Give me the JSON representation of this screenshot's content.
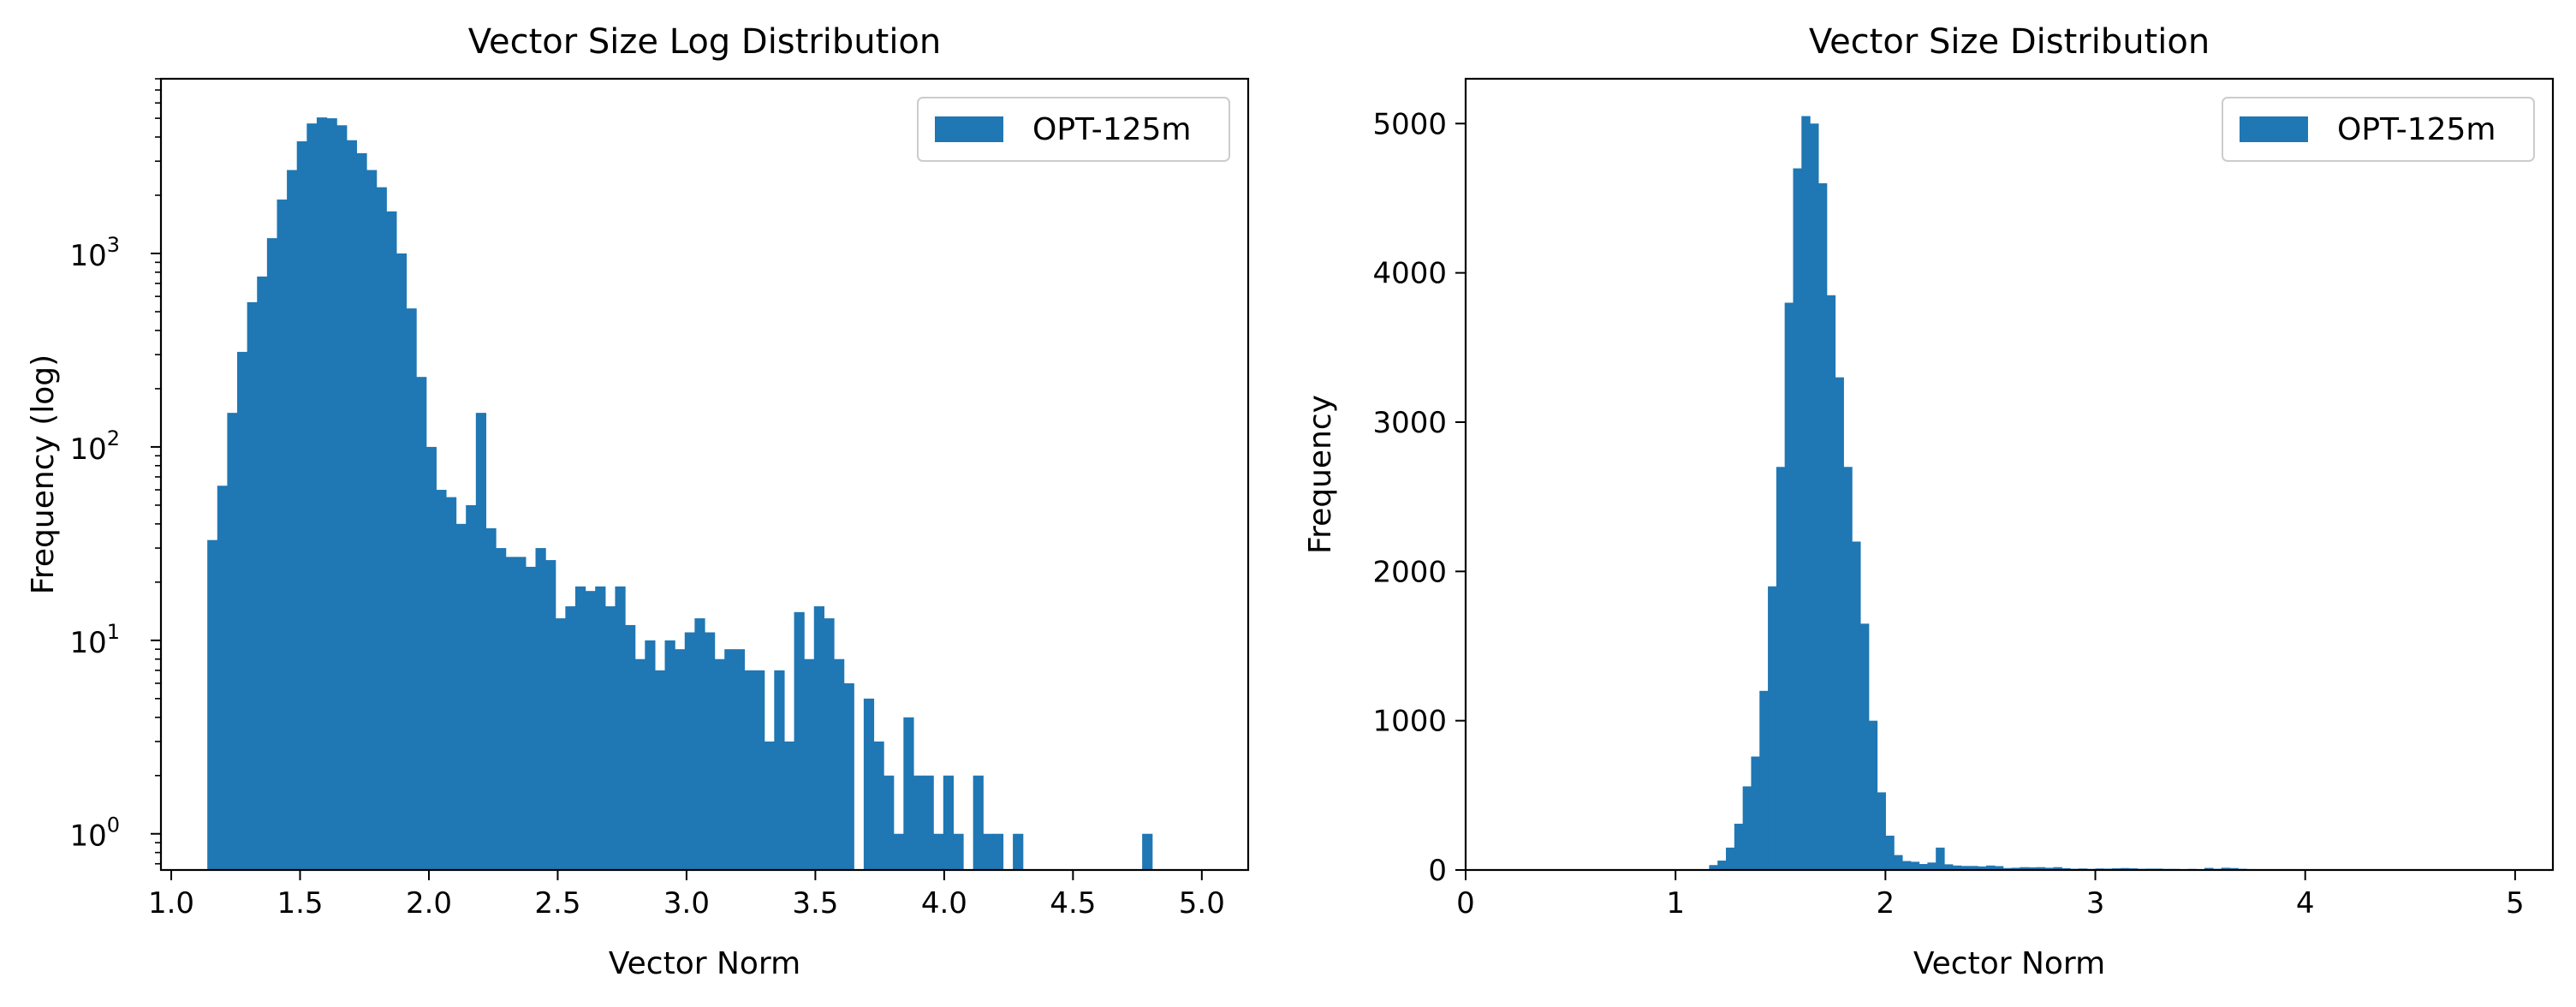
{
  "chart_data": [
    {
      "type": "bar",
      "subtype": "histogram",
      "title": "Vector Size Log Distribution",
      "xlabel": "Vector Norm",
      "ylabel": "Frequency (log)",
      "yscale": "log",
      "xlim": [
        0.96,
        5.18
      ],
      "ylim": [
        0.65,
        8000
      ],
      "xticks": [
        "1.0",
        "1.5",
        "2.0",
        "2.5",
        "3.0",
        "3.5",
        "4.0",
        "4.5",
        "5.0"
      ],
      "yticks": [
        {
          "value": 1,
          "base": "10",
          "exp": "0"
        },
        {
          "value": 10,
          "base": "10",
          "exp": "1"
        },
        {
          "value": 100,
          "base": "10",
          "exp": "2"
        },
        {
          "value": 1000,
          "base": "10",
          "exp": "3"
        }
      ],
      "legend": {
        "label": "OPT-125m",
        "position": "top-right"
      },
      "color": "#1f77b4",
      "series": [
        {
          "name": "OPT-125m",
          "bin_start": 1.14,
          "bin_width": 0.0386,
          "values": [
            33,
            63,
            150,
            310,
            560,
            760,
            1200,
            1900,
            2700,
            3800,
            4700,
            5050,
            5000,
            4600,
            3850,
            3300,
            2700,
            2200,
            1650,
            1000,
            520,
            230,
            100,
            60,
            55,
            40,
            50,
            150,
            38,
            30,
            27,
            27,
            24,
            30,
            26,
            13,
            15,
            19,
            18,
            19,
            15,
            19,
            12,
            8,
            10,
            7,
            10,
            9,
            11,
            13,
            11,
            8,
            9,
            9,
            7,
            7,
            3,
            7,
            3,
            14,
            8,
            15,
            13,
            8,
            6,
            0,
            5,
            3,
            2,
            1,
            4,
            2,
            2,
            1,
            2,
            1,
            0,
            2,
            1,
            1,
            0,
            1,
            0,
            0,
            0,
            0,
            0,
            0,
            0,
            0,
            0,
            0,
            0,
            0,
            1,
            0,
            0,
            0,
            0,
            0
          ]
        }
      ]
    },
    {
      "type": "bar",
      "subtype": "histogram",
      "title": "Vector Size Distribution",
      "xlabel": "Vector Norm",
      "ylabel": "Frequency",
      "yscale": "linear",
      "xlim": [
        0,
        5.18
      ],
      "ylim": [
        0,
        5300
      ],
      "xticks": [
        "0",
        "1",
        "2",
        "3",
        "4",
        "5"
      ],
      "yticks": [
        "0",
        "1000",
        "2000",
        "3000",
        "4000",
        "5000"
      ],
      "legend": {
        "label": "OPT-125m",
        "position": "top-right"
      },
      "color": "#1f77b4",
      "series": [
        {
          "name": "OPT-125m",
          "bin_start": 0.0,
          "bin_width": 0.04,
          "values": [
            0,
            0,
            0,
            0,
            0,
            0,
            0,
            0,
            0,
            0,
            0,
            0,
            0,
            0,
            0,
            0,
            0,
            0,
            0,
            0,
            0,
            0,
            0,
            0,
            0,
            0,
            0,
            0,
            0,
            33,
            63,
            150,
            310,
            560,
            760,
            1200,
            1900,
            2700,
            3800,
            4700,
            5050,
            5000,
            4600,
            3850,
            3300,
            2700,
            2200,
            1650,
            1000,
            520,
            230,
            100,
            60,
            55,
            40,
            50,
            150,
            38,
            30,
            27,
            27,
            24,
            30,
            26,
            13,
            15,
            19,
            18,
            19,
            15,
            19,
            12,
            8,
            10,
            7,
            10,
            9,
            11,
            13,
            11,
            8,
            9,
            9,
            7,
            7,
            3,
            7,
            3,
            14,
            8,
            15,
            13,
            8,
            6,
            0,
            5,
            3,
            2,
            1,
            4,
            2,
            2,
            1,
            2,
            1,
            0,
            2,
            1,
            1,
            0,
            1,
            0,
            0,
            0,
            0,
            0,
            0,
            0,
            0,
            0,
            0,
            0,
            0,
            0,
            0,
            0,
            0,
            0,
            0,
            0
          ]
        }
      ]
    }
  ]
}
